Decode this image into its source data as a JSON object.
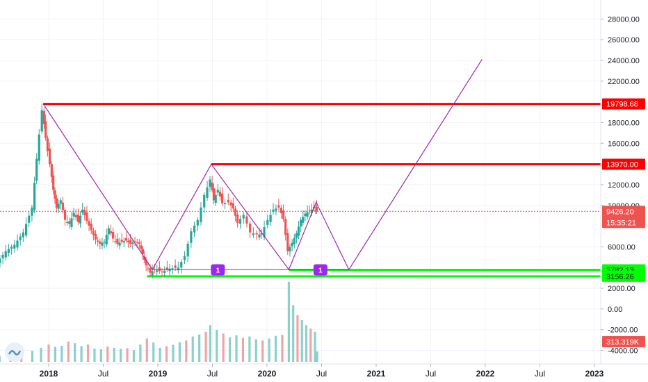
{
  "chart_data": {
    "type": "candlestick",
    "ylim": [
      -5000,
      29500
    ],
    "y_ticks": [
      {
        "value": 28000,
        "label": "28000.00"
      },
      {
        "value": 26000,
        "label": "26000.00"
      },
      {
        "value": 24000,
        "label": "24000.00"
      },
      {
        "value": 22000,
        "label": "22000.00"
      },
      {
        "value": 18000,
        "label": "18000.00"
      },
      {
        "value": 16000,
        "label": "16000.00"
      },
      {
        "value": 14000,
        "label": "14000.00"
      },
      {
        "value": 12000,
        "label": "12000.00"
      },
      {
        "value": 10000,
        "label": "10000.00"
      },
      {
        "value": 6000,
        "label": "6000.00"
      },
      {
        "value": 2000,
        "label": "2000.00"
      },
      {
        "value": 0,
        "label": "0.00"
      },
      {
        "value": -2000,
        "label": "-2000.00"
      },
      {
        "value": -4000,
        "label": "-4000.00"
      }
    ],
    "x_ticks": [
      {
        "t": 2018.0,
        "label": "2018",
        "major": true
      },
      {
        "t": 2018.5,
        "label": "Jul",
        "major": false
      },
      {
        "t": 2019.0,
        "label": "2019",
        "major": true
      },
      {
        "t": 2019.5,
        "label": "Jul",
        "major": false
      },
      {
        "t": 2020.0,
        "label": "2020",
        "major": true
      },
      {
        "t": 2020.5,
        "label": "Jul",
        "major": false
      },
      {
        "t": 2021.0,
        "label": "2021",
        "major": true
      },
      {
        "t": 2021.5,
        "label": "Jul",
        "major": false
      },
      {
        "t": 2022.0,
        "label": "2022",
        "major": true
      },
      {
        "t": 2022.5,
        "label": "Jul",
        "major": false
      },
      {
        "t": 2023.0,
        "label": "2023",
        "major": true
      }
    ],
    "price_series": [
      [
        2017.3,
        4400
      ],
      [
        2017.38,
        4200
      ],
      [
        2017.46,
        3900
      ],
      [
        2017.54,
        4500
      ],
      [
        2017.62,
        5600
      ],
      [
        2017.7,
        6200
      ],
      [
        2017.78,
        7400
      ],
      [
        2017.86,
        9800
      ],
      [
        2017.9,
        14500
      ],
      [
        2017.95,
        19200
      ],
      [
        2017.98,
        16500
      ],
      [
        2018.02,
        14000
      ],
      [
        2018.05,
        11500
      ],
      [
        2018.08,
        9800
      ],
      [
        2018.12,
        10500
      ],
      [
        2018.16,
        8600
      ],
      [
        2018.2,
        8200
      ],
      [
        2018.24,
        9300
      ],
      [
        2018.28,
        8400
      ],
      [
        2018.32,
        9600
      ],
      [
        2018.36,
        8500
      ],
      [
        2018.4,
        7600
      ],
      [
        2018.44,
        6700
      ],
      [
        2018.48,
        6300
      ],
      [
        2018.52,
        6500
      ],
      [
        2018.56,
        7800
      ],
      [
        2018.6,
        6800
      ],
      [
        2018.64,
        6300
      ],
      [
        2018.68,
        6500
      ],
      [
        2018.72,
        6600
      ],
      [
        2018.76,
        6300
      ],
      [
        2018.8,
        6500
      ],
      [
        2018.84,
        6300
      ],
      [
        2018.87,
        5300
      ],
      [
        2018.9,
        4200
      ],
      [
        2018.94,
        3500
      ],
      [
        2018.98,
        3800
      ],
      [
        2019.05,
        3600
      ],
      [
        2019.12,
        3900
      ],
      [
        2019.2,
        4000
      ],
      [
        2019.26,
        5100
      ],
      [
        2019.32,
        7500
      ],
      [
        2019.38,
        8600
      ],
      [
        2019.44,
        11000
      ],
      [
        2019.49,
        12500
      ],
      [
        2019.52,
        10500
      ],
      [
        2019.56,
        11500
      ],
      [
        2019.6,
        10200
      ],
      [
        2019.66,
        10300
      ],
      [
        2019.7,
        9700
      ],
      [
        2019.74,
        8300
      ],
      [
        2019.8,
        9100
      ],
      [
        2019.86,
        7400
      ],
      [
        2019.92,
        7200
      ],
      [
        2019.96,
        7200
      ],
      [
        2020.02,
        8600
      ],
      [
        2020.07,
        9600
      ],
      [
        2020.12,
        9800
      ],
      [
        2020.16,
        8700
      ],
      [
        2020.2,
        5600
      ],
      [
        2020.24,
        6400
      ],
      [
        2020.28,
        7300
      ],
      [
        2020.32,
        8600
      ],
      [
        2020.36,
        9200
      ],
      [
        2020.4,
        9500
      ],
      [
        2020.44,
        9700
      ],
      [
        2020.46,
        9426
      ]
    ],
    "volume_bars": [
      [
        2017.35,
        120
      ],
      [
        2017.45,
        160
      ],
      [
        2017.55,
        180
      ],
      [
        2017.65,
        210
      ],
      [
        2017.75,
        260
      ],
      [
        2017.85,
        330
      ],
      [
        2017.93,
        420
      ],
      [
        2018.0,
        520
      ],
      [
        2018.06,
        450
      ],
      [
        2018.12,
        480
      ],
      [
        2018.18,
        610
      ],
      [
        2018.24,
        560
      ],
      [
        2018.3,
        470
      ],
      [
        2018.36,
        520
      ],
      [
        2018.42,
        400
      ],
      [
        2018.48,
        380
      ],
      [
        2018.54,
        460
      ],
      [
        2018.6,
        420
      ],
      [
        2018.66,
        390
      ],
      [
        2018.72,
        410
      ],
      [
        2018.78,
        350
      ],
      [
        2018.84,
        520
      ],
      [
        2018.9,
        700
      ],
      [
        2018.96,
        580
      ],
      [
        2019.02,
        420
      ],
      [
        2019.08,
        470
      ],
      [
        2019.14,
        510
      ],
      [
        2019.2,
        590
      ],
      [
        2019.26,
        640
      ],
      [
        2019.32,
        760
      ],
      [
        2019.38,
        820
      ],
      [
        2019.44,
        900
      ],
      [
        2019.48,
        1100
      ],
      [
        2019.54,
        960
      ],
      [
        2019.6,
        850
      ],
      [
        2019.66,
        740
      ],
      [
        2019.72,
        800
      ],
      [
        2019.78,
        720
      ],
      [
        2019.84,
        760
      ],
      [
        2019.9,
        680
      ],
      [
        2019.96,
        640
      ],
      [
        2020.02,
        700
      ],
      [
        2020.08,
        780
      ],
      [
        2020.14,
        810
      ],
      [
        2020.2,
        2400
      ],
      [
        2020.24,
        1700
      ],
      [
        2020.28,
        1400
      ],
      [
        2020.32,
        1250
      ],
      [
        2020.36,
        1100
      ],
      [
        2020.4,
        1000
      ],
      [
        2020.44,
        900
      ],
      [
        2020.46,
        313
      ]
    ],
    "horizontal_levels": [
      {
        "price": 19798.68,
        "label": "19798.68",
        "color": "#ff0000",
        "t_start": 2017.95
      },
      {
        "price": 13970.0,
        "label": "13970.00",
        "color": "#ff0000",
        "t_start": 2019.49
      },
      {
        "price": 3782.13,
        "label": "3782.13",
        "color": "#00ff00",
        "t_start": 2020.2
      },
      {
        "price": 3156.26,
        "label": "3156.26",
        "color": "#00ff00",
        "t_start": 2018.9
      }
    ],
    "current_price": {
      "value": 9426.2,
      "label": "9426.20",
      "countdown": "15:35:21"
    },
    "volume_label": "313.319K",
    "projection_path": [
      [
        2017.95,
        19798
      ],
      [
        2018.95,
        3800
      ],
      [
        2019.49,
        13970
      ],
      [
        2020.2,
        3800
      ],
      [
        2020.45,
        10300
      ],
      [
        2020.75,
        3800
      ],
      [
        2021.97,
        24100
      ]
    ],
    "badges": [
      {
        "t": 2019.55,
        "price": 3780,
        "label": "1"
      },
      {
        "t": 2020.49,
        "price": 3780,
        "label": "1"
      }
    ],
    "connector_lines": [
      {
        "t1": 2018.95,
        "t2": 2020.2,
        "price": 3800,
        "color": "#9c27b0"
      },
      {
        "t1": 2020.2,
        "t2": 2020.75,
        "price": 3800,
        "color": "#2962ff"
      }
    ],
    "colors": {
      "up": "#26a69a",
      "down": "#ef5350",
      "volume_up": "#80cbc4",
      "volume_down": "#ef9a9a",
      "projection": "#9c27b0",
      "badge": "#9c27ef",
      "current": "#ef5350"
    }
  }
}
